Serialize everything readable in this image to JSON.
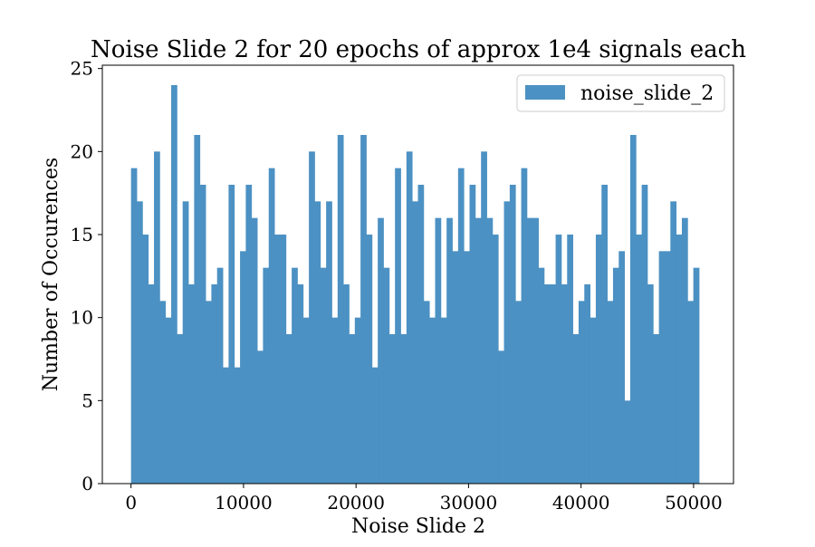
{
  "chart_data": {
    "type": "bar",
    "title": "Noise Slide 2 for 20 epochs of approx 1e4 signals each",
    "xlabel": "Noise Slide 2",
    "ylabel": "Number of Occurences",
    "xlim": [
      -2550,
      53550
    ],
    "ylim": [
      0,
      25.2
    ],
    "xticks": [
      0,
      10000,
      20000,
      30000,
      40000,
      50000
    ],
    "xtick_labels": [
      "0",
      "10000",
      "20000",
      "30000",
      "40000",
      "50000"
    ],
    "yticks": [
      0,
      5,
      10,
      15,
      20,
      25
    ],
    "ytick_labels": [
      "0",
      "5",
      "10",
      "15",
      "20",
      "25"
    ],
    "grid": false,
    "legend_position": "top-right",
    "bin_start": 0,
    "bin_width": 510,
    "series": [
      {
        "name": "noise_slide_2",
        "color": "#4c91c3",
        "values": [
          19,
          17,
          15,
          12,
          20,
          11,
          10,
          24,
          9,
          17,
          12,
          21,
          18,
          11,
          12,
          13,
          7,
          18,
          7,
          14,
          18,
          16,
          8,
          13,
          19,
          15,
          15,
          9,
          13,
          12,
          10,
          20,
          17,
          13,
          17,
          10,
          21,
          12,
          9,
          10,
          21,
          15,
          7,
          16,
          13,
          9,
          19,
          9,
          20,
          17,
          18,
          11,
          10,
          16,
          10,
          16,
          14,
          19,
          14,
          18,
          16,
          20,
          16,
          15,
          8,
          17,
          18,
          11,
          19,
          16,
          16,
          13,
          12,
          12,
          15,
          12,
          15,
          9,
          11,
          12,
          10,
          15,
          18,
          11,
          13,
          14,
          5,
          21,
          15,
          18,
          12,
          9,
          14,
          14,
          17,
          15,
          16,
          11,
          13
        ]
      }
    ]
  }
}
